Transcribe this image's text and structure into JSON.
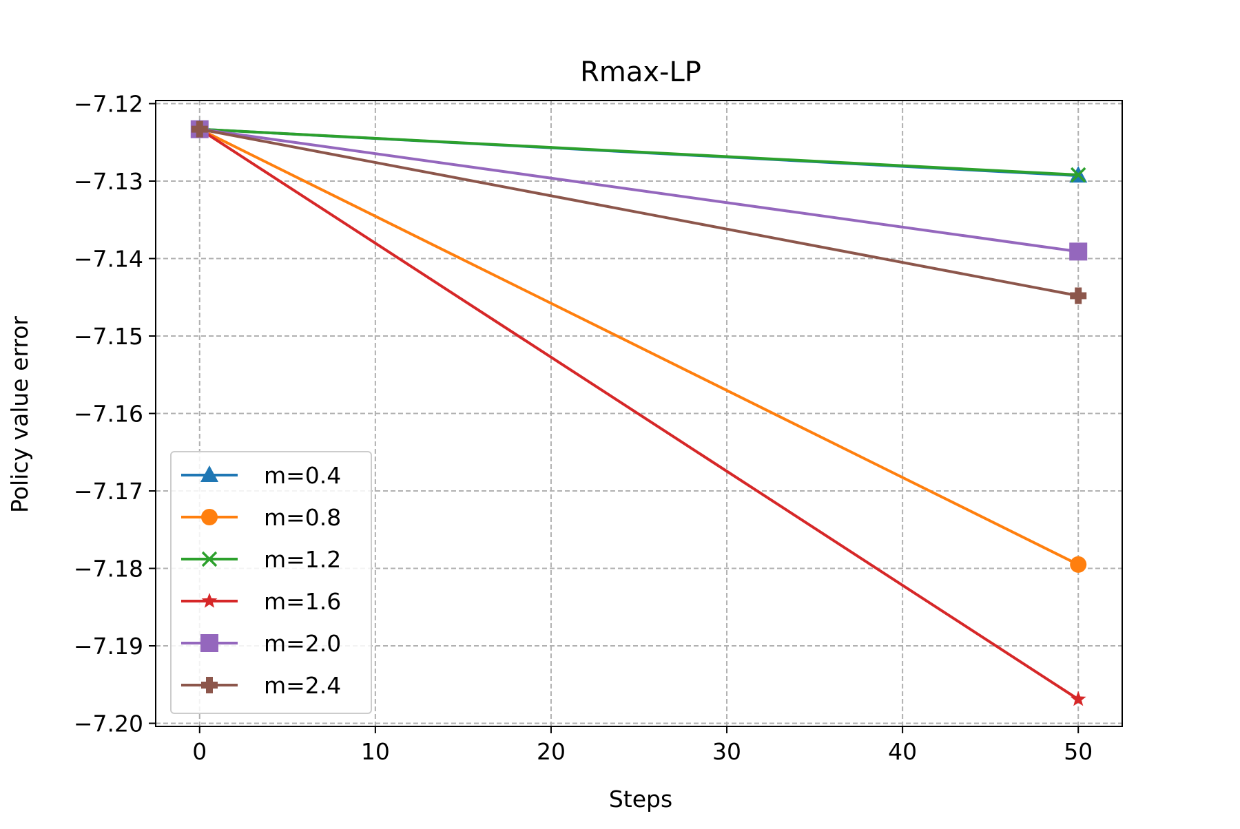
{
  "chart_data": {
    "type": "line",
    "title": "Rmax-LP",
    "xlabel": "Steps",
    "ylabel": "Policy value error",
    "x": [
      0,
      50
    ],
    "xlim": [
      -2.5,
      52.5
    ],
    "ylim": [
      -7.2004,
      -7.1196
    ],
    "xticks": [
      0,
      10,
      20,
      30,
      40,
      50
    ],
    "xtick_labels": [
      "0",
      "10",
      "20",
      "30",
      "40",
      "50"
    ],
    "yticks": [
      -7.12,
      -7.13,
      -7.14,
      -7.15,
      -7.16,
      -7.17,
      -7.18,
      -7.19,
      -7.2
    ],
    "ytick_labels": [
      "−7.12",
      "−7.13",
      "−7.14",
      "−7.15",
      "−7.16",
      "−7.17",
      "−7.18",
      "−7.19",
      "−7.20"
    ],
    "grid": true,
    "legend_position": "lower-left",
    "series": [
      {
        "name": "m=0.4",
        "values": [
          -7.1233,
          -7.1293
        ],
        "color": "#1f77b4",
        "marker": "triangle"
      },
      {
        "name": "m=0.8",
        "values": [
          -7.1233,
          -7.1795
        ],
        "color": "#ff7f0e",
        "marker": "circle"
      },
      {
        "name": "m=1.2",
        "values": [
          -7.1233,
          -7.1292
        ],
        "color": "#2ca02c",
        "marker": "x"
      },
      {
        "name": "m=1.6",
        "values": [
          -7.1233,
          -7.1969
        ],
        "color": "#d62728",
        "marker": "star"
      },
      {
        "name": "m=2.0",
        "values": [
          -7.1233,
          -7.1391
        ],
        "color": "#9467bd",
        "marker": "square"
      },
      {
        "name": "m=2.4",
        "values": [
          -7.1233,
          -7.1448
        ],
        "color": "#8c564b",
        "marker": "plus"
      }
    ]
  }
}
